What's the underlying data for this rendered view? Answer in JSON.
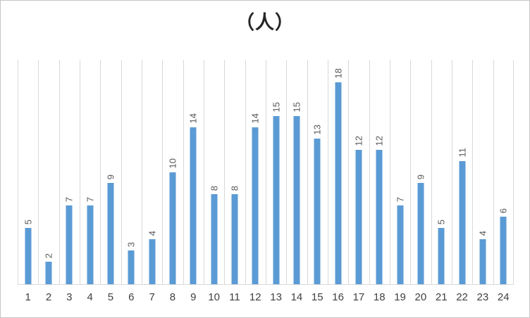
{
  "chart_data": {
    "type": "bar",
    "title": "（人）",
    "categories": [
      "1",
      "2",
      "3",
      "4",
      "5",
      "6",
      "7",
      "8",
      "9",
      "10",
      "11",
      "12",
      "13",
      "14",
      "15",
      "16",
      "17",
      "18",
      "19",
      "20",
      "21",
      "22",
      "23",
      "24"
    ],
    "values": [
      5,
      2,
      7,
      7,
      9,
      3,
      4,
      10,
      14,
      8,
      8,
      14,
      15,
      15,
      13,
      18,
      12,
      12,
      7,
      9,
      5,
      11,
      4,
      6
    ],
    "xlabel": "",
    "ylabel": "",
    "ylim": [
      0,
      20
    ],
    "grid": "vertical-only",
    "legend": "none",
    "data_labels": "rotated-vertical-above-bars",
    "bar_color": "#5b9bd5",
    "label_color": "#595959",
    "gridline_color": "#d9d9d9",
    "axis_color": "#d9d9d9"
  }
}
